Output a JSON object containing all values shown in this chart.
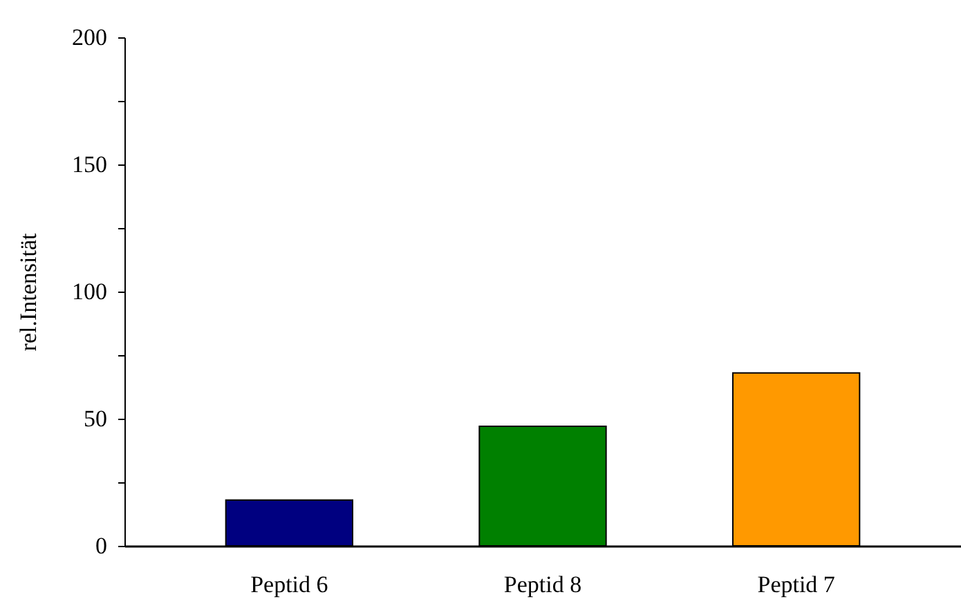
{
  "chart_data": {
    "type": "bar",
    "ylabel": "rel.Intensität",
    "categories": [
      "Peptid 6",
      "Peptid  8",
      "Peptid 7"
    ],
    "values": [
      18,
      47,
      68
    ],
    "colors": [
      "#000080",
      "#008000",
      "#ff9900"
    ],
    "ylim": [
      0,
      200
    ],
    "yticks": [
      0,
      {
        "value": 25,
        "label": null
      },
      50,
      {
        "value": 75,
        "label": null
      },
      100,
      {
        "value": 125,
        "label": null
      },
      150,
      {
        "value": 175,
        "label": null
      },
      200
    ],
    "grid": false
  }
}
